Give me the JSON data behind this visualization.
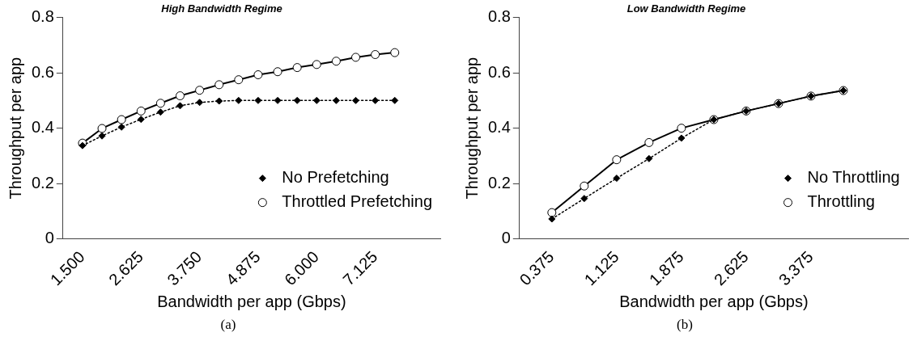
{
  "chart_data": [
    {
      "type": "line",
      "title": "High Bandwidth Regime",
      "xlabel": "Bandwidth per app (Gbps)",
      "ylabel": "Throughput per app",
      "x": [
        1.5,
        1.875,
        2.25,
        2.625,
        3.0,
        3.375,
        3.75,
        4.125,
        4.5,
        4.875,
        5.25,
        5.625,
        6.0,
        6.375,
        6.75,
        7.125,
        7.5
      ],
      "series": [
        {
          "name": "No Prefetching",
          "color": "#000000",
          "marker": "diamond",
          "line_style": "dotted",
          "values": [
            0.337,
            0.372,
            0.404,
            0.432,
            0.458,
            0.481,
            0.493,
            0.498,
            0.5,
            0.5,
            0.5,
            0.5,
            0.5,
            0.5,
            0.5,
            0.5,
            0.5
          ]
        },
        {
          "name": "Throttled Prefetching",
          "color": "#000000",
          "marker": "circle",
          "line_style": "solid",
          "values": [
            0.346,
            0.399,
            0.431,
            0.462,
            0.49,
            0.517,
            0.537,
            0.557,
            0.575,
            0.593,
            0.604,
            0.619,
            0.63,
            0.642,
            0.656,
            0.666,
            0.673
          ]
        }
      ],
      "xlim": [
        1.125,
        8.375
      ],
      "xticks": [
        {
          "value": 1.5,
          "label": "1.500"
        },
        {
          "value": 2.625,
          "label": "2.625"
        },
        {
          "value": 3.75,
          "label": "3.750"
        },
        {
          "value": 4.875,
          "label": "4.875"
        },
        {
          "value": 6.0,
          "label": "6.000"
        },
        {
          "value": 7.125,
          "label": "7.125"
        }
      ],
      "ylim": [
        0,
        0.8
      ],
      "yticks": [
        0,
        0.2,
        0.4,
        0.6,
        0.8
      ],
      "grid": false,
      "legend": "bottom right",
      "annotations": [
        "(a)"
      ]
    },
    {
      "type": "line",
      "title": "Low Bandwidth Regime",
      "xlabel": "Bandwidth per app (Gbps)",
      "ylabel": "Throughput per app",
      "x": [
        0.375,
        0.75,
        1.125,
        1.5,
        1.875,
        2.25,
        2.625,
        3.0,
        3.375,
        3.75
      ],
      "series": [
        {
          "name": "No Throttling",
          "color": "#000000",
          "marker": "diamond",
          "line_style": "dotted",
          "values": [
            0.072,
            0.146,
            0.219,
            0.29,
            0.364,
            0.431,
            0.462,
            0.489,
            0.516,
            0.536
          ]
        },
        {
          "name": "Throttling",
          "color": "#000000",
          "marker": "circle",
          "line_style": "solid",
          "values": [
            0.095,
            0.191,
            0.286,
            0.348,
            0.4,
            0.431,
            0.462,
            0.489,
            0.516,
            0.536
          ]
        }
      ],
      "xlim": [
        0,
        4.5
      ],
      "xticks": [
        {
          "value": 0.375,
          "label": "0.375"
        },
        {
          "value": 1.125,
          "label": "1.125"
        },
        {
          "value": 1.875,
          "label": "1.875"
        },
        {
          "value": 2.625,
          "label": "2.625"
        },
        {
          "value": 3.375,
          "label": "3.375"
        }
      ],
      "ylim": [
        0,
        0.8
      ],
      "yticks": [
        0,
        0.2,
        0.4,
        0.6,
        0.8
      ],
      "grid": false,
      "legend": "bottom right",
      "annotations": [
        "(b)"
      ]
    }
  ]
}
